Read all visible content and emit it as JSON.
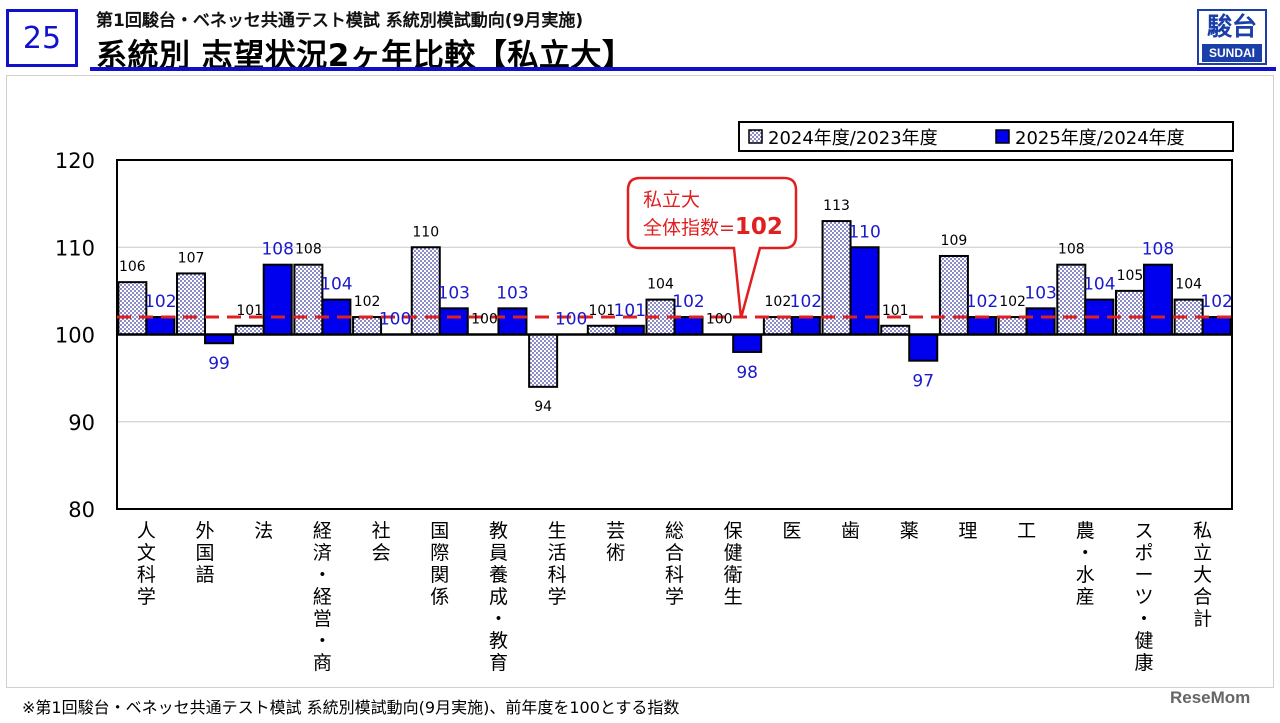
{
  "header": {
    "page_number": "25",
    "subtitle": "第1回駿台・ベネッセ共通テスト模試 系統別模試動向(9月実施)",
    "title": "系統別 志望状況2ヶ年比較【私立大】",
    "logo_kanji": "駿台",
    "logo_text": "SUNDAI"
  },
  "colors": {
    "accent": "#1111cc",
    "series_2025": "#0000ee",
    "label_2025": "#1a1acc",
    "dots": "#3a3aa0",
    "reference": "#e02020"
  },
  "chart_data": {
    "type": "bar",
    "categories": [
      "人文科学",
      "外国語",
      "法",
      "経済・経営・商",
      "社会",
      "国際関係",
      "教員養成・教育",
      "生活科学",
      "芸術",
      "総合科学",
      "保健衛生",
      "医",
      "歯",
      "薬",
      "理",
      "工",
      "農・水産",
      "スポーツ・健康",
      "私立大合計"
    ],
    "series": [
      {
        "name": "2024年度/2023年度",
        "values": [
          106,
          107,
          101,
          108,
          102,
          110,
          100,
          94,
          101,
          104,
          100,
          102,
          113,
          101,
          109,
          102,
          108,
          105,
          104
        ]
      },
      {
        "name": "2025年度/2024年度",
        "values": [
          102,
          99,
          108,
          104,
          100,
          103,
          103,
          100,
          101,
          102,
          98,
          102,
          110,
          97,
          102,
          103,
          104,
          108,
          102
        ]
      }
    ],
    "yticks": [
      "80",
      "90",
      "100",
      "110",
      "120"
    ],
    "ylim": [
      80,
      120
    ],
    "baseline": 100,
    "reference_line": 102,
    "grid": true,
    "legend_position": "top-right",
    "annotation": {
      "line1": "私立大",
      "line2_prefix": "全体指数=",
      "value": "102"
    }
  },
  "footnote": "※第1回駿台・ベネッセ共通テスト模試 系統別模試動向(9月実施)、前年度を100とする指数",
  "watermark": "ReseMom"
}
